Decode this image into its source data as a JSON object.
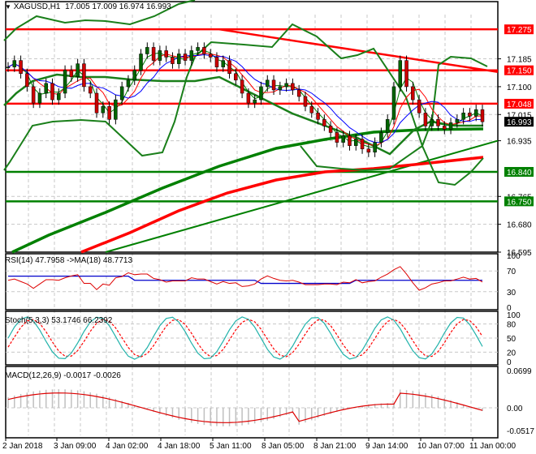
{
  "header": {
    "symbol_label": "XAGUSD,H1",
    "ohlc": "17.005 17.009 16.974 16.993",
    "dropdown_icon": "triangle-down-icon"
  },
  "colors": {
    "bull_candle": "#006400",
    "bear_candle": "#cc0000",
    "resistance_line": "#ff0000",
    "support_line": "#008000",
    "bollinger": "#1a7f1a",
    "ma_blue": "#0000ff",
    "ma_red": "#ff0000",
    "ma_green": "#008000",
    "rsi_line": "#dd0000",
    "rsi_ma": "#0000cc",
    "stoch_main": "#20b2aa",
    "stoch_signal": "#ff0000",
    "macd_hist": "#c0c0c0",
    "macd_signal": "#dd0000",
    "current_price_bg": "#000000"
  },
  "price_axis": {
    "ticks": [
      "17.185",
      "17.100",
      "17.015",
      "16.935",
      "16.765",
      "16.680",
      "16.595"
    ],
    "tags": [
      {
        "value": "17.275",
        "color": "#ff0000"
      },
      {
        "value": "17.150",
        "color": "#ff0000"
      },
      {
        "value": "17.048",
        "color": "#ff0000"
      },
      {
        "value": "16.993",
        "color": "#000000"
      },
      {
        "value": "16.840",
        "color": "#008000"
      },
      {
        "value": "16.750",
        "color": "#008000"
      }
    ]
  },
  "rsi_panel": {
    "title": "RSI(14) 47.7958  ->MA(18) 48.7713",
    "ticks": [
      "100",
      "70",
      "30",
      "0"
    ]
  },
  "stoch_panel": {
    "title": "Stoch(5,3,3) 53.1746 66.2392",
    "ticks": [
      "100",
      "80",
      "50",
      "20",
      "0"
    ]
  },
  "macd_panel": {
    "title": "MACD(12,26,9) -0.0017 -0.0026",
    "ticks": [
      "0.0699",
      "0.00",
      "-0.0517"
    ]
  },
  "time_axis": {
    "labels": [
      "2 Jan 2018",
      "3 Jan 09:00",
      "4 Jan 02:00",
      "4 Jan 18:00",
      "5 Jan 11:00",
      "8 Jan 05:00",
      "8 Jan 21:00",
      "9 Jan 14:00",
      "10 Jan 07:00",
      "11 Jan 00:00"
    ]
  },
  "chart_data": [
    {
      "type": "candlestick",
      "title": "XAGUSD,H1",
      "ohlc_last": {
        "open": 17.005,
        "high": 17.009,
        "low": 16.974,
        "close": 16.993
      },
      "ylim": [
        16.595,
        17.32
      ],
      "xlabels": [
        "2 Jan 2018",
        "3 Jan 09:00",
        "4 Jan 02:00",
        "4 Jan 18:00",
        "5 Jan 11:00",
        "8 Jan 05:00",
        "8 Jan 21:00",
        "9 Jan 14:00",
        "10 Jan 07:00",
        "11 Jan 00:00"
      ],
      "horizontal_levels": [
        {
          "value": 17.275,
          "color": "red",
          "role": "resistance"
        },
        {
          "value": 17.15,
          "color": "red",
          "role": "resistance"
        },
        {
          "value": 17.048,
          "color": "red",
          "role": "resistance"
        },
        {
          "value": 16.84,
          "color": "green",
          "role": "support"
        },
        {
          "value": 16.75,
          "color": "green",
          "role": "support"
        }
      ],
      "trendlines": [
        {
          "color": "red",
          "from": {
            "x": "5 Jan 11:00",
            "y": 17.275
          },
          "to": {
            "x": "11 Jan 00:00",
            "y": 17.15
          }
        },
        {
          "color": "green",
          "from": {
            "x": "3 Jan 09:00",
            "y": 16.595
          },
          "to": {
            "x": "11 Jan 08:00",
            "y": 16.935
          }
        }
      ],
      "closes_approx": [
        17.16,
        17.18,
        17.14,
        17.1,
        17.05,
        17.08,
        17.11,
        17.06,
        17.08,
        17.15,
        17.13,
        17.17,
        17.1,
        17.08,
        17.02,
        17.04,
        17.0,
        17.06,
        17.1,
        17.12,
        17.15,
        17.2,
        17.22,
        17.18,
        17.21,
        17.19,
        17.17,
        17.2,
        17.18,
        17.21,
        17.22,
        17.2,
        17.19,
        17.16,
        17.18,
        17.14,
        17.12,
        17.08,
        17.05,
        17.06,
        17.1,
        17.12,
        17.09,
        17.1,
        17.11,
        17.09,
        17.07,
        17.04,
        17.02,
        17.0,
        16.98,
        16.96,
        16.93,
        16.95,
        16.92,
        16.94,
        16.91,
        16.9,
        16.93,
        16.96,
        17.0,
        17.1,
        17.18,
        17.1,
        17.06,
        17.02,
        16.98,
        17.0,
        16.98,
        16.97,
        16.99,
        17.0,
        17.02,
        17.01,
        17.03,
        16.993
      ],
      "moving_averages": [
        {
          "name": "MA long (green, thick)",
          "last": 16.96
        },
        {
          "name": "MA long (red, thick)",
          "last": 16.88
        }
      ]
    },
    {
      "type": "line",
      "title": "RSI(14)",
      "series": [
        {
          "name": "RSI(14)",
          "last": 47.7958
        },
        {
          "name": "MA(18)",
          "last": 48.7713
        }
      ],
      "ylim": [
        0,
        100
      ],
      "levels": [
        30,
        70
      ]
    },
    {
      "type": "line",
      "title": "Stoch(5,3,3)",
      "series": [
        {
          "name": "%K",
          "last": 53.1746
        },
        {
          "name": "%D",
          "last": 66.2392
        }
      ],
      "ylim": [
        0,
        100
      ],
      "levels": [
        20,
        50,
        80
      ]
    },
    {
      "type": "bar",
      "title": "MACD(12,26,9)",
      "series": [
        {
          "name": "MACD",
          "last": -0.0017
        },
        {
          "name": "Signal",
          "last": -0.0026
        }
      ],
      "ylim": [
        -0.0517,
        0.0699
      ]
    }
  ]
}
